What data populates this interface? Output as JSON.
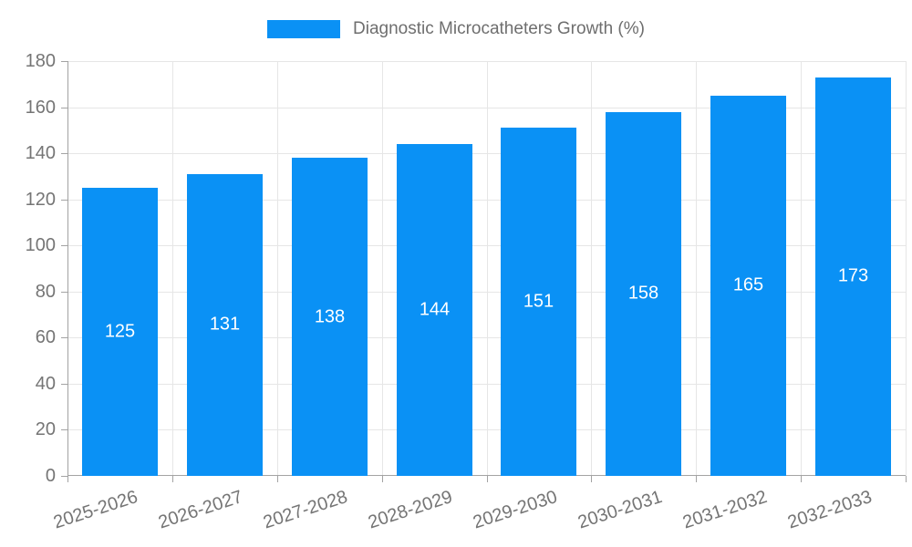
{
  "chart_data": {
    "type": "bar",
    "title": "Diagnostic Microcatheters Growth (%)",
    "categories": [
      "2025-2026",
      "2026-2027",
      "2027-2028",
      "2028-2029",
      "2029-2030",
      "2030-2031",
      "2031-2032",
      "2032-2033"
    ],
    "values": [
      125,
      131,
      138,
      144,
      151,
      158,
      165,
      173
    ],
    "xlabel": "",
    "ylabel": "",
    "ylim": [
      0,
      180
    ],
    "ytick_step": 20,
    "ytick_labels": [
      "0",
      "20",
      "40",
      "60",
      "80",
      "100",
      "120",
      "140",
      "160",
      "180"
    ],
    "grid": "horizontal and vertical light gridlines",
    "legend_position": "top-center",
    "bar_label_position": "center-inside"
  },
  "colors": {
    "bar": "#0a91f5",
    "bar_value_text": "#ffffff",
    "grid": "#e6e6e6",
    "axis_line": "#a3a3a3",
    "tick_text": "#757575",
    "legend_text": "#6e6e6e",
    "background": "#ffffff"
  }
}
